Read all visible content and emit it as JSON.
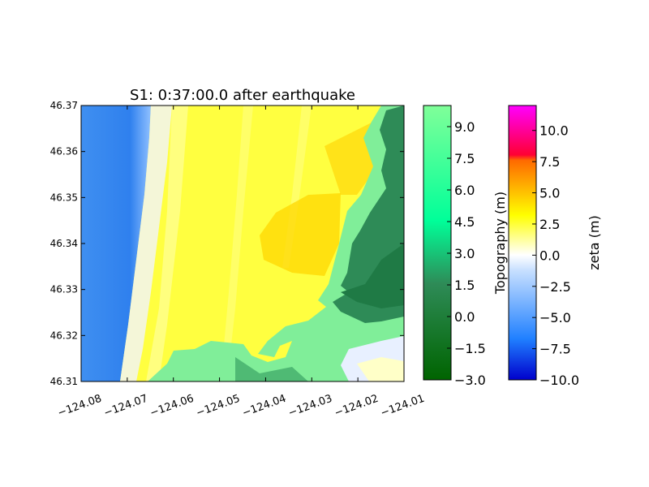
{
  "chart_data": {
    "type": "heatmap",
    "title": "S1: 0:37:00.0 after earthquake",
    "xlabel": "",
    "ylabel": "",
    "xlim": [
      -124.08,
      -124.01
    ],
    "ylim": [
      46.31,
      46.37
    ],
    "x_ticks": [
      -124.08,
      -124.07,
      -124.06,
      -124.05,
      -124.04,
      -124.03,
      -124.02,
      -124.01
    ],
    "x_tick_labels": [
      "−124.08",
      "−124.07",
      "−124.06",
      "−124.05",
      "−124.04",
      "−124.03",
      "−124.02",
      "−124.01"
    ],
    "y_ticks": [
      46.31,
      46.32,
      46.33,
      46.34,
      46.35,
      46.36,
      46.37
    ],
    "y_tick_labels": [
      "46.31",
      "46.32",
      "46.33",
      "46.34",
      "46.35",
      "46.36",
      "46.37"
    ],
    "colorbars": [
      {
        "label": "Topography (m)",
        "range": [
          -3.0,
          10.0
        ],
        "ticks": [
          -3.0,
          -1.5,
          0.0,
          1.5,
          3.0,
          4.5,
          6.0,
          7.5,
          9.0
        ],
        "tick_labels": [
          "−3.0",
          "−1.5",
          "0.0",
          "1.5",
          "3.0",
          "4.5",
          "6.0",
          "7.5",
          "9.0"
        ],
        "colors": [
          "#006400",
          "#2e8b57",
          "#00ff99",
          "#80ff99"
        ]
      },
      {
        "label": "zeta (m)",
        "range": [
          -10.0,
          12.0
        ],
        "ticks": [
          -10.0,
          -7.5,
          -5.0,
          -2.5,
          0.0,
          2.5,
          5.0,
          7.5,
          10.0
        ],
        "tick_labels": [
          "−10.0",
          "−7.5",
          "−5.0",
          "−2.5",
          "0.0",
          "2.5",
          "5.0",
          "7.5",
          "10.0"
        ],
        "colors": [
          "#0000cc",
          "#2080ff",
          "#ffffff",
          "#ffff00",
          "#ff6a00",
          "#ff0033",
          "#ff00ff"
        ]
      }
    ]
  }
}
